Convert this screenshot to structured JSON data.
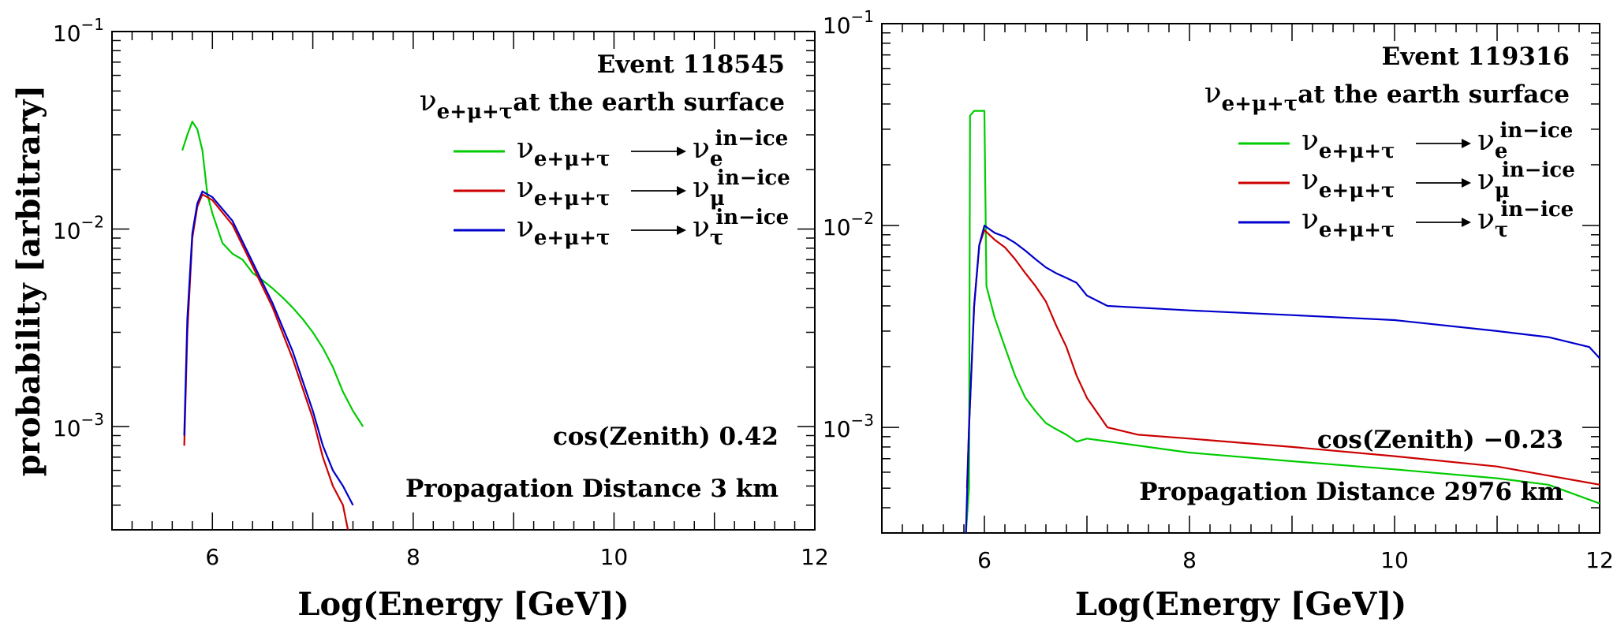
{
  "chart_data": [
    {
      "type": "line",
      "xlabel": "Log(Energy [GeV])",
      "ylabel": "probability [arbitrary]",
      "xlim": [
        5,
        12
      ],
      "ylim": [
        0.0003,
        0.1
      ],
      "yscale": "log",
      "xticks": [
        "6",
        "8",
        "10",
        "12"
      ],
      "yticks": [
        "10",
        "10",
        "10"
      ],
      "ytick_exponents": [
        "−1",
        "−2",
        "−3"
      ],
      "ytick_values": [
        0.1,
        0.01,
        0.001
      ],
      "annotations": {
        "event": "Event 118545",
        "surface_nu": "ν",
        "surface_sub": "e+μ+τ",
        "surface_text": "at the earth surface",
        "zenith": "cos(Zenith) 0.42",
        "distance": "Propagation Distance 3 km"
      },
      "legend_position": "top-right",
      "series": [
        {
          "nu": "ν",
          "from": "e+μ+τ",
          "to_sub": "e",
          "to_sup": "in−ice",
          "color": "#00cc00",
          "x": [
            5.7,
            5.75,
            5.8,
            5.85,
            5.9,
            5.95,
            6.0,
            6.1,
            6.2,
            6.3,
            6.4,
            6.5,
            6.6,
            6.7,
            6.8,
            6.9,
            7.0,
            7.1,
            7.2,
            7.3,
            7.4,
            7.5
          ],
          "y": [
            0.025,
            0.03,
            0.035,
            0.032,
            0.025,
            0.015,
            0.012,
            0.0085,
            0.0075,
            0.007,
            0.006,
            0.0055,
            0.005,
            0.0045,
            0.004,
            0.0035,
            0.003,
            0.0025,
            0.002,
            0.0015,
            0.0012,
            0.001
          ]
        },
        {
          "nu": "ν",
          "from": "e+μ+τ",
          "to_sub": "μ",
          "to_sup": "in−ice",
          "color": "#cc0000",
          "x": [
            5.72,
            5.75,
            5.8,
            5.85,
            5.9,
            6.0,
            6.2,
            6.4,
            6.6,
            6.8,
            7.0,
            7.1,
            7.2,
            7.3,
            7.35
          ],
          "y": [
            0.0008,
            0.003,
            0.009,
            0.013,
            0.015,
            0.014,
            0.0105,
            0.0065,
            0.004,
            0.0022,
            0.0011,
            0.0007,
            0.0005,
            0.0004,
            0.0003
          ]
        },
        {
          "nu": "ν",
          "from": "e+μ+τ",
          "to_sub": "τ",
          "to_sup": "in−ice",
          "color": "#0000cc",
          "x": [
            5.72,
            5.75,
            5.8,
            5.85,
            5.9,
            6.0,
            6.2,
            6.4,
            6.6,
            6.8,
            7.0,
            7.1,
            7.2,
            7.3,
            7.4
          ],
          "y": [
            0.0009,
            0.0035,
            0.0095,
            0.0135,
            0.0155,
            0.0145,
            0.011,
            0.0068,
            0.0042,
            0.0024,
            0.0012,
            0.0008,
            0.0006,
            0.0005,
            0.0004
          ]
        }
      ]
    },
    {
      "type": "line",
      "xlabel": "Log(Energy [GeV])",
      "ylabel": "",
      "xlim": [
        5,
        12
      ],
      "ylim": [
        0.0003,
        0.1
      ],
      "yscale": "log",
      "xticks": [
        "6",
        "8",
        "10",
        "12"
      ],
      "yticks": [
        "10",
        "10",
        "10"
      ],
      "ytick_exponents": [
        "−1",
        "−2",
        "−3"
      ],
      "ytick_values": [
        0.1,
        0.01,
        0.001
      ],
      "annotations": {
        "event": "Event 119316",
        "surface_nu": "ν",
        "surface_sub": "e+μ+τ",
        "surface_text": "at the earth surface",
        "zenith": "cos(Zenith) −0.23",
        "distance": "Propagation Distance 2976 km"
      },
      "legend_position": "top-right",
      "series": [
        {
          "nu": "ν",
          "from": "e+μ+τ",
          "to_sub": "e",
          "to_sup": "in−ice",
          "color": "#00cc00",
          "x": [
            5.82,
            5.85,
            5.86,
            5.9,
            5.95,
            6.0,
            6.02,
            6.1,
            6.2,
            6.3,
            6.4,
            6.5,
            6.6,
            6.7,
            6.8,
            6.9,
            7.0,
            8.0,
            9.0,
            10.0,
            11.0,
            11.5,
            12.0
          ],
          "y": [
            0.0003,
            0.0005,
            0.035,
            0.037,
            0.037,
            0.037,
            0.005,
            0.0035,
            0.0025,
            0.0018,
            0.0014,
            0.0012,
            0.00105,
            0.00098,
            0.00092,
            0.00085,
            0.00088,
            0.00075,
            0.00068,
            0.00062,
            0.00056,
            0.00052,
            0.00042
          ]
        },
        {
          "nu": "ν",
          "from": "e+μ+τ",
          "to_sub": "μ",
          "to_sup": "in−ice",
          "color": "#cc0000",
          "x": [
            5.83,
            5.85,
            5.9,
            5.95,
            6.0,
            6.1,
            6.2,
            6.3,
            6.4,
            6.5,
            6.6,
            6.7,
            6.8,
            6.9,
            7.0,
            7.2,
            7.5,
            8.0,
            9.0,
            10.0,
            11.0,
            12.0
          ],
          "y": [
            0.0005,
            0.001,
            0.004,
            0.008,
            0.0095,
            0.0085,
            0.0078,
            0.0068,
            0.0058,
            0.005,
            0.0042,
            0.0032,
            0.0025,
            0.0018,
            0.0014,
            0.001,
            0.00092,
            0.00088,
            0.0008,
            0.00072,
            0.00064,
            0.00052
          ]
        },
        {
          "nu": "ν",
          "from": "e+μ+τ",
          "to_sub": "τ",
          "to_sup": "in−ice",
          "color": "#0000cc",
          "x": [
            5.82,
            5.85,
            5.9,
            5.95,
            6.0,
            6.1,
            6.2,
            6.3,
            6.4,
            6.5,
            6.6,
            6.7,
            6.8,
            6.9,
            7.0,
            7.2,
            8.0,
            9.0,
            10.0,
            11.0,
            11.5,
            11.9,
            12.0
          ],
          "y": [
            0.0003,
            0.001,
            0.004,
            0.008,
            0.01,
            0.0092,
            0.0088,
            0.0082,
            0.0075,
            0.0068,
            0.0062,
            0.0058,
            0.0055,
            0.0052,
            0.0045,
            0.004,
            0.0038,
            0.0036,
            0.0034,
            0.003,
            0.0028,
            0.0025,
            0.0022
          ]
        }
      ]
    }
  ]
}
